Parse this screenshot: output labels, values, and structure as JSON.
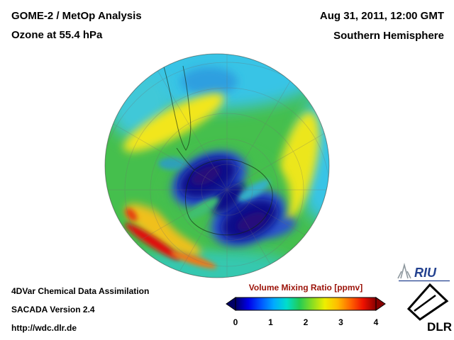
{
  "header": {
    "product": "GOME-2 / MetOp Analysis",
    "quantity": "Ozone at 55.4 hPa",
    "datetime": "Aug 31, 2011, 12:00 GMT",
    "region": "Southern Hemisphere"
  },
  "footer": {
    "line1": "4DVar Chemical Data Assimilation",
    "line2": "SACADA Version 2.4",
    "line3": "http://wdc.dlr.de"
  },
  "colorbar": {
    "title": "Volume Mixing Ratio [ppmv]",
    "title_color": "#9b1208",
    "ticks": [
      "0",
      "1",
      "2",
      "3",
      "4"
    ],
    "range_min": 0,
    "range_max": 4,
    "gradient": [
      "#000066",
      "#0000e8",
      "#0055ff",
      "#00aaff",
      "#00ddcc",
      "#22cc55",
      "#88dd22",
      "#eeee00",
      "#ffbb00",
      "#ff6600",
      "#ee1100",
      "#880000"
    ]
  },
  "logos": {
    "riu": "RIU",
    "dlr": "DLR"
  }
}
